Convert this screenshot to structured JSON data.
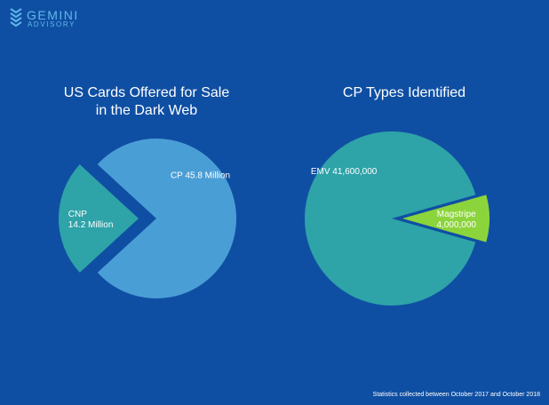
{
  "brand": {
    "name": "GEMINI",
    "sub": "ADVISORY"
  },
  "colors": {
    "background": "#0f4fa3",
    "cp": "#4a9ed6",
    "cnp": "#2ea3a8",
    "emv": "#2ea3a8",
    "magstripe": "#8cd43c",
    "label_text": "#ffffff",
    "logo": "#5fb8e8"
  },
  "chart_data": [
    {
      "type": "pie",
      "title": "US Cards Offered for Sale in the Dark Web",
      "title_lines": [
        "US Cards Offered for Sale",
        "in the Dark Web"
      ],
      "slices": [
        {
          "key": "cp",
          "label": "CP 45.8 Million",
          "label_lines": [
            "CP 45.8 Million"
          ],
          "value": 45.8,
          "color": "#4a9ed6",
          "exploded": false
        },
        {
          "key": "cnp",
          "label": "CNP 14.2 Million",
          "label_lines": [
            "CNP",
            "14.2 Million"
          ],
          "value": 14.2,
          "color": "#2ea3a8",
          "exploded": true
        }
      ]
    },
    {
      "type": "pie",
      "title": "CP Types Identified",
      "title_lines": [
        "CP Types Identified"
      ],
      "slices": [
        {
          "key": "emv",
          "label": "EMV 41,600,000",
          "label_lines": [
            "EMV 41,600,000"
          ],
          "value": 41600000,
          "color": "#2ea3a8",
          "exploded": false
        },
        {
          "key": "magstripe",
          "label": "Magstripe 4,000,000",
          "label_lines": [
            "Magstripe",
            "4,000,000"
          ],
          "value": 4000000,
          "color": "#8cd43c",
          "exploded": true
        }
      ]
    }
  ],
  "footnote": "Statistics collected between October 2017 and October 2018"
}
